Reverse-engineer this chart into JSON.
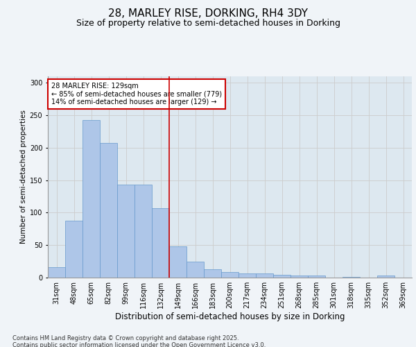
{
  "title_line1": "28, MARLEY RISE, DORKING, RH4 3DY",
  "title_line2": "Size of property relative to semi-detached houses in Dorking",
  "categories": [
    "31sqm",
    "48sqm",
    "65sqm",
    "82sqm",
    "99sqm",
    "116sqm",
    "132sqm",
    "149sqm",
    "166sqm",
    "183sqm",
    "200sqm",
    "217sqm",
    "234sqm",
    "251sqm",
    "268sqm",
    "285sqm",
    "301sqm",
    "318sqm",
    "335sqm",
    "352sqm",
    "369sqm"
  ],
  "values": [
    16,
    88,
    243,
    207,
    143,
    143,
    107,
    48,
    25,
    13,
    9,
    6,
    6,
    4,
    3,
    3,
    0,
    1,
    0,
    3,
    0
  ],
  "bar_color": "#aec6e8",
  "bar_edge_color": "#6699cc",
  "vline_color": "#cc0000",
  "annotation_text": "28 MARLEY RISE: 129sqm\n← 85% of semi-detached houses are smaller (779)\n14% of semi-detached houses are larger (129) →",
  "annotation_box_color": "#cc0000",
  "xlabel": "Distribution of semi-detached houses by size in Dorking",
  "ylabel": "Number of semi-detached properties",
  "ylim": [
    0,
    310
  ],
  "yticks": [
    0,
    50,
    100,
    150,
    200,
    250,
    300
  ],
  "grid_color": "#cccccc",
  "bg_color": "#dde8f0",
  "footer": "Contains HM Land Registry data © Crown copyright and database right 2025.\nContains public sector information licensed under the Open Government Licence v3.0.",
  "title_fontsize": 11,
  "subtitle_fontsize": 9,
  "xlabel_fontsize": 8.5,
  "ylabel_fontsize": 7.5,
  "tick_fontsize": 7,
  "footer_fontsize": 6,
  "annotation_fontsize": 7
}
